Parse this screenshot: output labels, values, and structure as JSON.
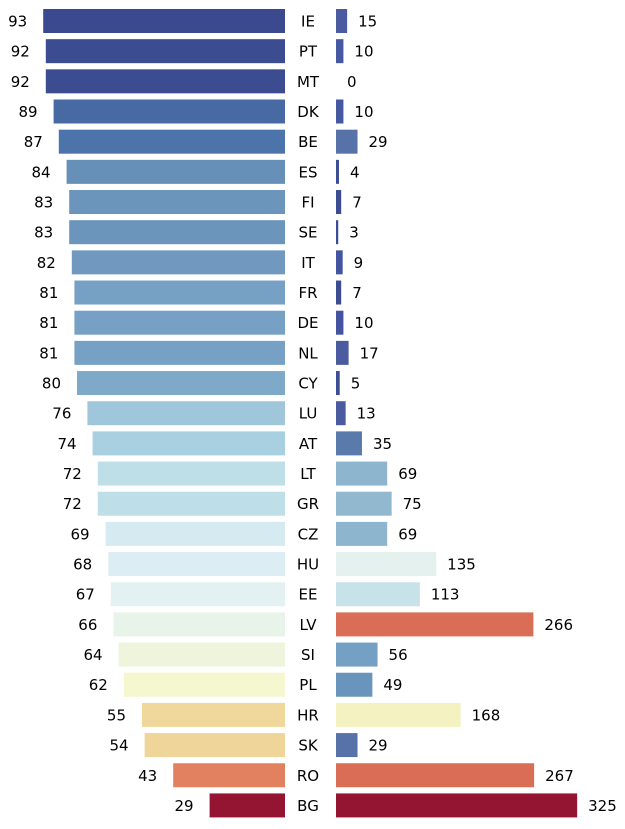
{
  "chart_data": {
    "type": "bar",
    "categories": [
      "IE",
      "PT",
      "MT",
      "DK",
      "BE",
      "ES",
      "FI",
      "SE",
      "IT",
      "FR",
      "DE",
      "NL",
      "CY",
      "LU",
      "AT",
      "LT",
      "GR",
      "CZ",
      "HU",
      "EE",
      "LV",
      "SI",
      "PL",
      "HR",
      "SK",
      "RO",
      "BG"
    ],
    "series": [
      {
        "values": [
          93,
          92,
          92,
          89,
          87,
          84,
          83,
          83,
          82,
          81,
          81,
          81,
          80,
          76,
          74,
          72,
          72,
          69,
          68,
          67,
          66,
          64,
          62,
          55,
          54,
          43,
          29
        ],
        "colors": [
          "#3b4a8f",
          "#3c4c91",
          "#3c4c91",
          "#476aa2",
          "#4d74aa",
          "#6690b8",
          "#6b95bb",
          "#6b95bb",
          "#7199bf",
          "#77a1c4",
          "#77a1c4",
          "#77a1c4",
          "#7fa9c9",
          "#9fc6da",
          "#a9d0e0",
          "#bfdfe8",
          "#bfdfe8",
          "#d6ebf1",
          "#dcedf4",
          "#e3f1f2",
          "#e8f4ea",
          "#eef5dc",
          "#f5f7cf",
          "#f0d89c",
          "#f0d59a",
          "#e1815f",
          "#931532"
        ]
      },
      {
        "values": [
          15,
          10,
          0,
          10,
          29,
          4,
          7,
          3,
          9,
          7,
          10,
          17,
          5,
          13,
          35,
          69,
          75,
          69,
          135,
          113,
          266,
          56,
          49,
          168,
          29,
          267,
          325
        ],
        "colors": [
          "#4a5ba0",
          "#4558a0",
          "#4558a0",
          "#4558a0",
          "#5672a8",
          "#3d4d93",
          "#3d4d93",
          "#3d4d93",
          "#4454a0",
          "#3d4d93",
          "#4454a0",
          "#4a5ba0",
          "#3d4d93",
          "#4a5ba0",
          "#5a7aac",
          "#8db5cd",
          "#91b8cf",
          "#8db5cd",
          "#e5f1ef",
          "#c7e2e9",
          "#d96d55",
          "#74a0c4",
          "#6994bb",
          "#f5f2c2",
          "#5672a8",
          "#d96d55",
          "#931532"
        ]
      }
    ]
  }
}
